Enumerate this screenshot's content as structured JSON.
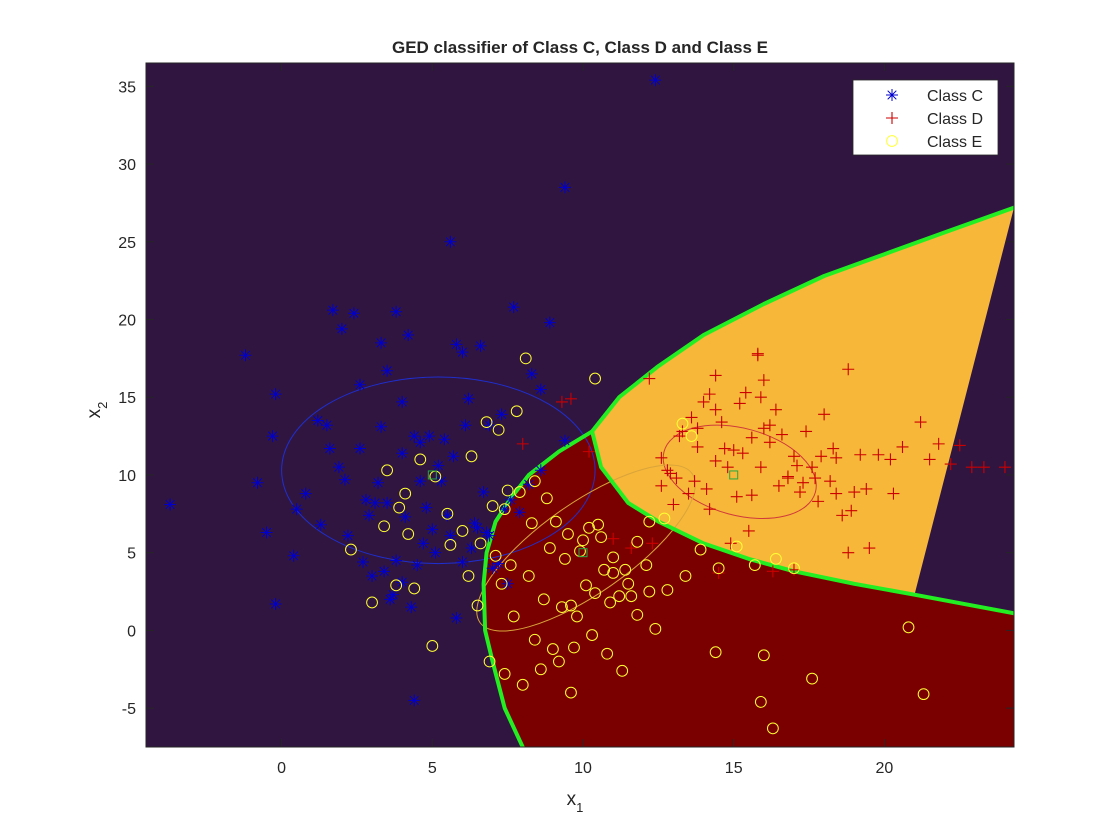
{
  "chart_data": {
    "type": "scatter",
    "title": "GED classifier of Class C, Class D and Class E",
    "xlabel": {
      "base": "x",
      "sub": "1"
    },
    "ylabel": {
      "base": "x",
      "sub": "2"
    },
    "xlim": [
      -4.5,
      24.3
    ],
    "ylim": [
      -7.5,
      36.5
    ],
    "xticks": [
      0,
      5,
      10,
      15,
      20
    ],
    "xtick_labels": [
      "0",
      "5",
      "10",
      "15",
      "20"
    ],
    "yticks": [
      -5,
      0,
      5,
      10,
      15,
      20,
      25,
      30,
      35
    ],
    "ytick_labels": [
      "-5",
      "0",
      "5",
      "10",
      "15",
      "20",
      "25",
      "30",
      "35"
    ],
    "grid": false,
    "legend_position": "top-right",
    "legend": [
      {
        "label": "Class C",
        "marker": "asterisk",
        "color": "#0000cc"
      },
      {
        "label": "Class D",
        "marker": "plus",
        "color": "#cc0000"
      },
      {
        "label": "Class E",
        "marker": "circle",
        "color": "#ffff33"
      }
    ],
    "regions": [
      {
        "class": "Class C",
        "color": "#301541"
      },
      {
        "class": "Class D",
        "color": "#7a0000"
      },
      {
        "class": "Class E",
        "color": "#f7b739"
      }
    ],
    "boundary_color": "#22ee22",
    "boundaries": [
      {
        "name": "C-D boundary",
        "points": [
          [
            8.0,
            -7.5
          ],
          [
            7.4,
            -5
          ],
          [
            7.0,
            -2
          ],
          [
            6.75,
            0
          ],
          [
            6.7,
            3
          ],
          [
            6.8,
            5
          ],
          [
            7.1,
            7
          ],
          [
            7.6,
            8.5
          ],
          [
            8.2,
            10
          ],
          [
            9.2,
            11.5
          ],
          [
            10.3,
            12.8
          ]
        ]
      },
      {
        "name": "C-E boundary",
        "points": [
          [
            10.3,
            12.8
          ],
          [
            11.2,
            15
          ],
          [
            12.5,
            17
          ],
          [
            14,
            19
          ],
          [
            16,
            21
          ],
          [
            18,
            22.8
          ],
          [
            20,
            24.2
          ],
          [
            22,
            25.6
          ],
          [
            24.3,
            27.2
          ]
        ]
      },
      {
        "name": "D-E boundary",
        "points": [
          [
            10.3,
            12.8
          ],
          [
            10.6,
            10.5
          ],
          [
            11.5,
            8.2
          ],
          [
            12.5,
            7
          ],
          [
            14,
            5.6
          ],
          [
            15.5,
            4.6
          ],
          [
            17,
            3.8
          ],
          [
            19,
            3
          ],
          [
            21,
            2.3
          ],
          [
            24.3,
            1.1
          ]
        ]
      }
    ],
    "ellipses": [
      {
        "class": "Class C",
        "center": [
          5.2,
          10.3
        ],
        "rx": 5.2,
        "ry": 6.0,
        "rotate_deg": 0,
        "color": "#1f2fd0"
      },
      {
        "class": "Class D",
        "center": [
          15.2,
          10.2
        ],
        "rx": 2.6,
        "ry": 2.8,
        "rotate_deg": 15,
        "color": "#d03a3a"
      },
      {
        "class": "Class E",
        "center": [
          10.1,
          5.3
        ],
        "rx": 4.3,
        "ry": 2.9,
        "rotate_deg": -35,
        "color": "#d9a43a"
      }
    ],
    "means": [
      {
        "class": "Class C",
        "x": 5.0,
        "y": 10.0
      },
      {
        "class": "Class D",
        "x": 15.0,
        "y": 10.0
      },
      {
        "class": "Class E",
        "x": 10.0,
        "y": 5.0
      }
    ],
    "series": [
      {
        "name": "Class C",
        "marker": "asterisk",
        "color": "#0000cc",
        "x": [
          -3.7,
          -1.2,
          -0.2,
          -0.3,
          -0.8,
          -0.5,
          -0.2,
          0.5,
          0.4,
          1.2,
          1.5,
          1.7,
          2.0,
          2.4,
          2.6,
          1.6,
          1.9,
          2.2,
          2.7,
          3.1,
          3.3,
          3.5,
          3.8,
          4.0,
          4.2,
          4.4,
          4.6,
          4.8,
          5.1,
          5.6,
          5.8,
          6.0,
          6.2,
          6.6,
          6.9,
          7.3,
          7.7,
          8.3,
          8.6,
          8.9,
          9.4,
          5.7,
          12.4,
          9.4,
          3.2,
          2.9,
          3.4,
          3.7,
          4.0,
          4.5,
          5.0,
          5.5,
          6.0,
          6.4,
          6.9,
          7.2,
          7.6,
          5.2,
          4.6,
          4.0,
          3.3,
          2.6,
          2.1,
          1.3,
          0.8,
          3.0,
          3.6,
          4.3,
          5.8,
          6.3,
          6.8,
          7.4,
          7.9,
          8.2,
          8.6,
          4.9,
          5.4,
          6.1,
          3.8,
          4.7,
          5.6,
          6.5,
          7.0,
          3.5,
          2.8,
          4.1,
          5.3,
          6.7,
          7.5,
          4.4
        ],
        "y": [
          8.1,
          17.7,
          15.2,
          12.5,
          9.5,
          6.3,
          1.7,
          7.8,
          4.8,
          13.5,
          13.2,
          20.6,
          19.4,
          20.4,
          15.8,
          11.7,
          10.5,
          6.1,
          4.4,
          8.2,
          18.5,
          16.7,
          20.5,
          14.7,
          19.0,
          12.5,
          9.6,
          7.9,
          5.0,
          25.0,
          18.4,
          17.9,
          14.9,
          18.3,
          13.2,
          13.9,
          20.8,
          16.5,
          15.5,
          19.8,
          28.5,
          11.2,
          35.4,
          12.2,
          9.5,
          7.4,
          3.8,
          2.3,
          3.1,
          4.2,
          6.5,
          7.4,
          4.4,
          6.9,
          6.1,
          4.3,
          8.4,
          10.6,
          12.1,
          11.4,
          13.1,
          11.7,
          9.7,
          6.8,
          8.8,
          3.5,
          2.0,
          1.5,
          0.8,
          5.3,
          6.3,
          7.8,
          7.6,
          9.4,
          10.3,
          12.5,
          12.3,
          13.2,
          4.5,
          5.6,
          6.1,
          6.6,
          4.0,
          8.2,
          8.4,
          7.3,
          9.6,
          8.9,
          3.0,
          -4.5
        ]
      },
      {
        "name": "Class D",
        "marker": "plus",
        "color": "#cc0000",
        "x": [
          9.3,
          9.6,
          8.0,
          10.2,
          12.2,
          12.6,
          12.8,
          13.1,
          13.3,
          13.6,
          13.8,
          14.0,
          14.2,
          14.4,
          14.6,
          14.8,
          15.0,
          15.2,
          15.4,
          15.6,
          15.8,
          16.0,
          16.2,
          16.4,
          16.6,
          16.8,
          17.0,
          17.2,
          17.4,
          17.6,
          17.8,
          18.0,
          18.2,
          18.4,
          18.6,
          18.8,
          19.0,
          19.2,
          19.5,
          19.8,
          20.2,
          20.6,
          21.2,
          21.5,
          21.8,
          22.2,
          22.5,
          22.9,
          23.3,
          24.0,
          15.8,
          16.0,
          15.9,
          14.4,
          13.8,
          13.2,
          12.9,
          12.6,
          13.5,
          14.1,
          14.7,
          15.3,
          15.9,
          16.5,
          17.1,
          17.7,
          18.3,
          18.9,
          14.2,
          15.1,
          16.2,
          17.3,
          18.4,
          13.0,
          13.7,
          14.4,
          15.6,
          16.8,
          17.9,
          19.4,
          20.3,
          12.3,
          11.6,
          11.0,
          14.5,
          16.3,
          18.8,
          17.0,
          15.5,
          14.9
        ],
        "y": [
          14.7,
          14.9,
          12.0,
          11.5,
          16.2,
          11.1,
          10.3,
          9.8,
          12.8,
          13.7,
          11.8,
          14.7,
          15.2,
          16.4,
          13.4,
          10.5,
          11.6,
          14.6,
          15.3,
          12.4,
          17.8,
          16.1,
          13.2,
          14.2,
          12.6,
          9.9,
          11.2,
          8.9,
          12.8,
          10.5,
          8.3,
          13.9,
          9.6,
          11.1,
          7.4,
          16.8,
          8.9,
          11.3,
          5.3,
          11.3,
          11.0,
          11.8,
          13.4,
          11.0,
          12.0,
          10.7,
          11.9,
          10.5,
          10.5,
          10.5,
          17.7,
          13.0,
          15.0,
          14.2,
          13.0,
          12.5,
          10.1,
          9.3,
          8.8,
          9.1,
          11.7,
          11.4,
          10.5,
          9.3,
          10.6,
          9.8,
          11.7,
          7.7,
          7.8,
          8.6,
          12.1,
          9.5,
          8.8,
          8.1,
          9.6,
          10.9,
          8.7,
          9.8,
          11.2,
          9.1,
          8.8,
          5.6,
          5.3,
          5.9,
          3.7,
          3.8,
          5.0,
          3.9,
          6.4,
          5.6
        ]
      },
      {
        "name": "Class E",
        "marker": "circle",
        "color": "#ffff33",
        "x": [
          8.1,
          6.8,
          7.2,
          7.8,
          6.3,
          3.0,
          2.3,
          3.4,
          4.6,
          5.1,
          5.5,
          6.0,
          6.6,
          7.4,
          7.9,
          8.4,
          8.8,
          9.1,
          9.5,
          9.9,
          10.2,
          10.6,
          11.0,
          11.4,
          11.8,
          12.2,
          12.7,
          7.1,
          7.6,
          8.2,
          8.7,
          9.3,
          9.8,
          10.4,
          10.9,
          11.5,
          12.1,
          7.3,
          7.7,
          8.4,
          9.0,
          9.6,
          10.1,
          10.7,
          11.2,
          11.8,
          12.4,
          6.9,
          7.4,
          8.0,
          8.6,
          9.2,
          9.7,
          10.3,
          10.8,
          11.3,
          6.5,
          5.0,
          4.4,
          3.8,
          4.2,
          5.6,
          6.2,
          7.0,
          7.5,
          8.3,
          8.9,
          9.4,
          10.0,
          10.5,
          11.0,
          11.6,
          12.2,
          12.8,
          13.4,
          13.9,
          14.5,
          15.1,
          15.7,
          16.4,
          17.0,
          17.6,
          16.0,
          15.9,
          16.3,
          14.4,
          20.8,
          21.3,
          13.6,
          13.3,
          10.4,
          9.6,
          3.5,
          3.9,
          4.1
        ],
        "y": [
          17.5,
          13.4,
          12.9,
          14.1,
          11.2,
          1.8,
          5.2,
          6.7,
          11.0,
          9.9,
          7.5,
          6.4,
          5.6,
          7.8,
          8.9,
          9.6,
          8.5,
          7.0,
          6.2,
          5.1,
          6.6,
          6.0,
          4.7,
          3.9,
          5.7,
          7.0,
          7.2,
          4.8,
          4.2,
          3.5,
          2.0,
          1.5,
          0.9,
          2.4,
          1.8,
          3.0,
          4.2,
          3.0,
          0.9,
          -0.6,
          -1.2,
          1.6,
          2.9,
          3.9,
          2.2,
          1.0,
          0.1,
          -2.0,
          -2.8,
          -3.5,
          -2.5,
          -2.0,
          -1.1,
          -0.3,
          -1.5,
          -2.6,
          1.6,
          -1.0,
          2.7,
          2.9,
          6.2,
          5.5,
          3.5,
          8.0,
          9.0,
          6.9,
          5.3,
          4.6,
          5.8,
          6.8,
          3.7,
          2.2,
          2.5,
          2.6,
          3.5,
          5.2,
          4.0,
          5.4,
          4.2,
          4.6,
          4.0,
          -3.1,
          -1.6,
          -4.6,
          -6.3,
          -1.4,
          0.2,
          -4.1,
          12.5,
          13.3,
          16.2,
          -4.0,
          10.3,
          7.9,
          8.8
        ]
      }
    ]
  }
}
